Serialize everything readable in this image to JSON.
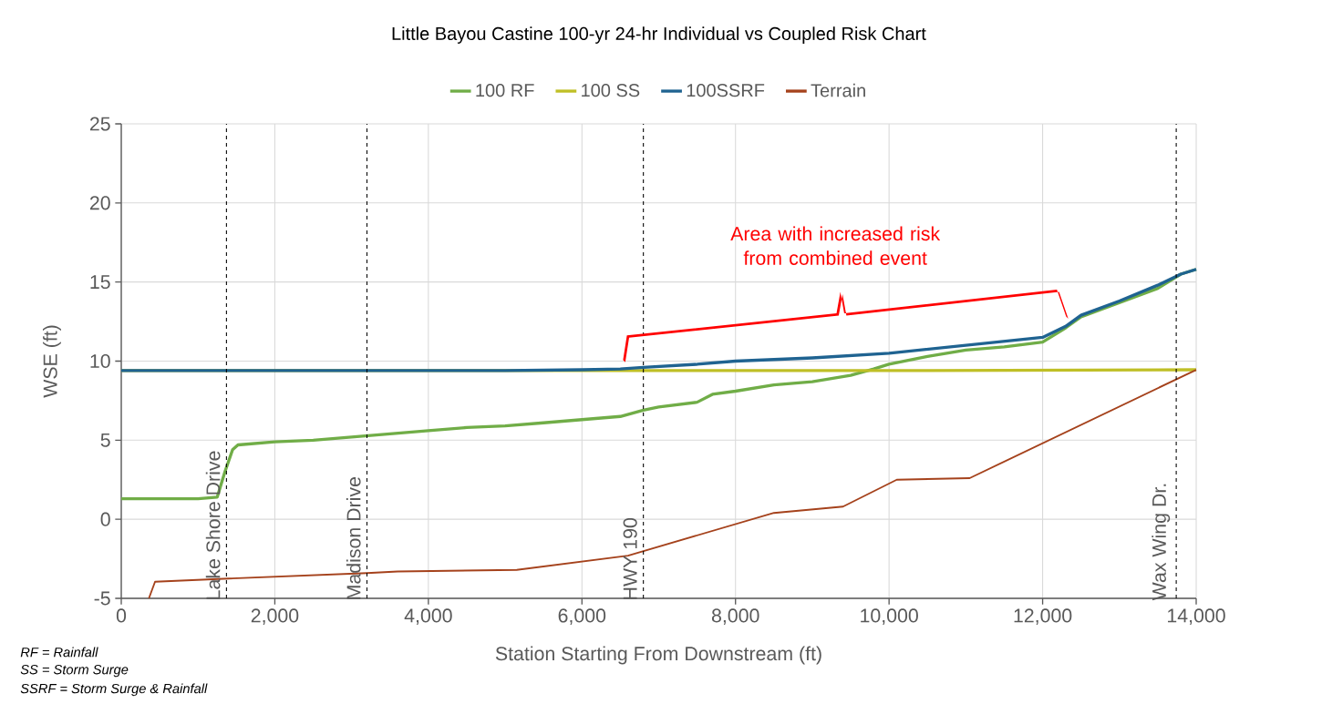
{
  "chart_data": {
    "type": "line",
    "title": "Little Bayou Castine 100-yr 24-hr Individual vs Coupled Risk Chart",
    "xlabel": "Station Starting From Downstream (ft)",
    "ylabel": "WSE (ft)",
    "xlim": [
      0,
      14000
    ],
    "ylim": [
      -5,
      25
    ],
    "xticks": [
      0,
      {
        "value": 2000,
        "label": "2,000"
      },
      {
        "value": 4000,
        "label": "4,000"
      },
      {
        "value": 6000,
        "label": "6,000"
      },
      {
        "value": 8000,
        "label": "8,000"
      },
      {
        "value": 10000,
        "label": "10,000"
      },
      {
        "value": 12000,
        "label": "12,000"
      },
      {
        "value": 14000,
        "label": "14,000"
      }
    ],
    "yticks": [
      -5,
      0,
      5,
      10,
      15,
      20,
      25
    ],
    "grid": true,
    "legend": "top",
    "series": [
      {
        "name": "100 RF",
        "color": "#70ad47",
        "x": [
          0,
          1000,
          1250,
          1350,
          1450,
          1520,
          2000,
          2500,
          3000,
          3500,
          4000,
          4500,
          5000,
          5500,
          6000,
          6500,
          6800,
          7000,
          7500,
          7700,
          8000,
          8500,
          9000,
          9500,
          9800,
          10000,
          10500,
          11000,
          11500,
          12000,
          12300,
          12500,
          13000,
          13500,
          13800,
          14000
        ],
        "values": [
          1.3,
          1.3,
          1.4,
          3.0,
          4.4,
          4.7,
          4.9,
          5.0,
          5.2,
          5.4,
          5.6,
          5.8,
          5.9,
          6.1,
          6.3,
          6.5,
          6.9,
          7.1,
          7.4,
          7.9,
          8.1,
          8.5,
          8.7,
          9.1,
          9.5,
          9.8,
          10.3,
          10.7,
          10.9,
          11.2,
          12.1,
          12.8,
          13.7,
          14.6,
          15.5,
          15.8
        ]
      },
      {
        "name": "100 SS",
        "color": "#bfbf26",
        "x": [
          0,
          5000,
          10000,
          14000
        ],
        "values": [
          9.4,
          9.4,
          9.4,
          9.45
        ]
      },
      {
        "name": "100SSRF",
        "color": "#1f6391",
        "x": [
          0,
          2000,
          5000,
          6000,
          6500,
          6800,
          7500,
          8000,
          9000,
          10000,
          11000,
          12000,
          12300,
          12500,
          13000,
          13500,
          13800,
          14000
        ],
        "values": [
          9.4,
          9.4,
          9.4,
          9.45,
          9.5,
          9.6,
          9.8,
          10.0,
          10.2,
          10.5,
          11.0,
          11.5,
          12.2,
          12.9,
          13.8,
          14.8,
          15.5,
          15.8
        ]
      },
      {
        "name": "Terrain",
        "color": "#a5421c",
        "x": [
          360,
          440,
          1400,
          3200,
          3600,
          5150,
          6600,
          8500,
          9400,
          10100,
          11050,
          14000
        ],
        "values": [
          -5,
          -3.95,
          -3.75,
          -3.4,
          -3.3,
          -3.2,
          -2.3,
          0.4,
          0.8,
          2.5,
          2.6,
          9.45
        ]
      }
    ],
    "ref_lines": [
      {
        "axis": "x",
        "value": 1370,
        "label": "Lake Shore Drive",
        "color": "#000000",
        "line_style": "dashed"
      },
      {
        "axis": "x",
        "value": 3200,
        "label": "Madison Drive",
        "color": "#000000",
        "line_style": "dashed"
      },
      {
        "axis": "x",
        "value": 6800,
        "label": "HWY 190",
        "color": "#000000",
        "line_style": "dashed"
      },
      {
        "axis": "x",
        "value": 13740,
        "label": "Wax Wing Dr.",
        "color": "#000000",
        "line_style": "dashed"
      }
    ],
    "annotations": [
      "Area with increased risk from combined event",
      "RF = Rainfall",
      "SS = Storm Surge",
      "SSRF = Storm Surge & Rainfall"
    ]
  }
}
